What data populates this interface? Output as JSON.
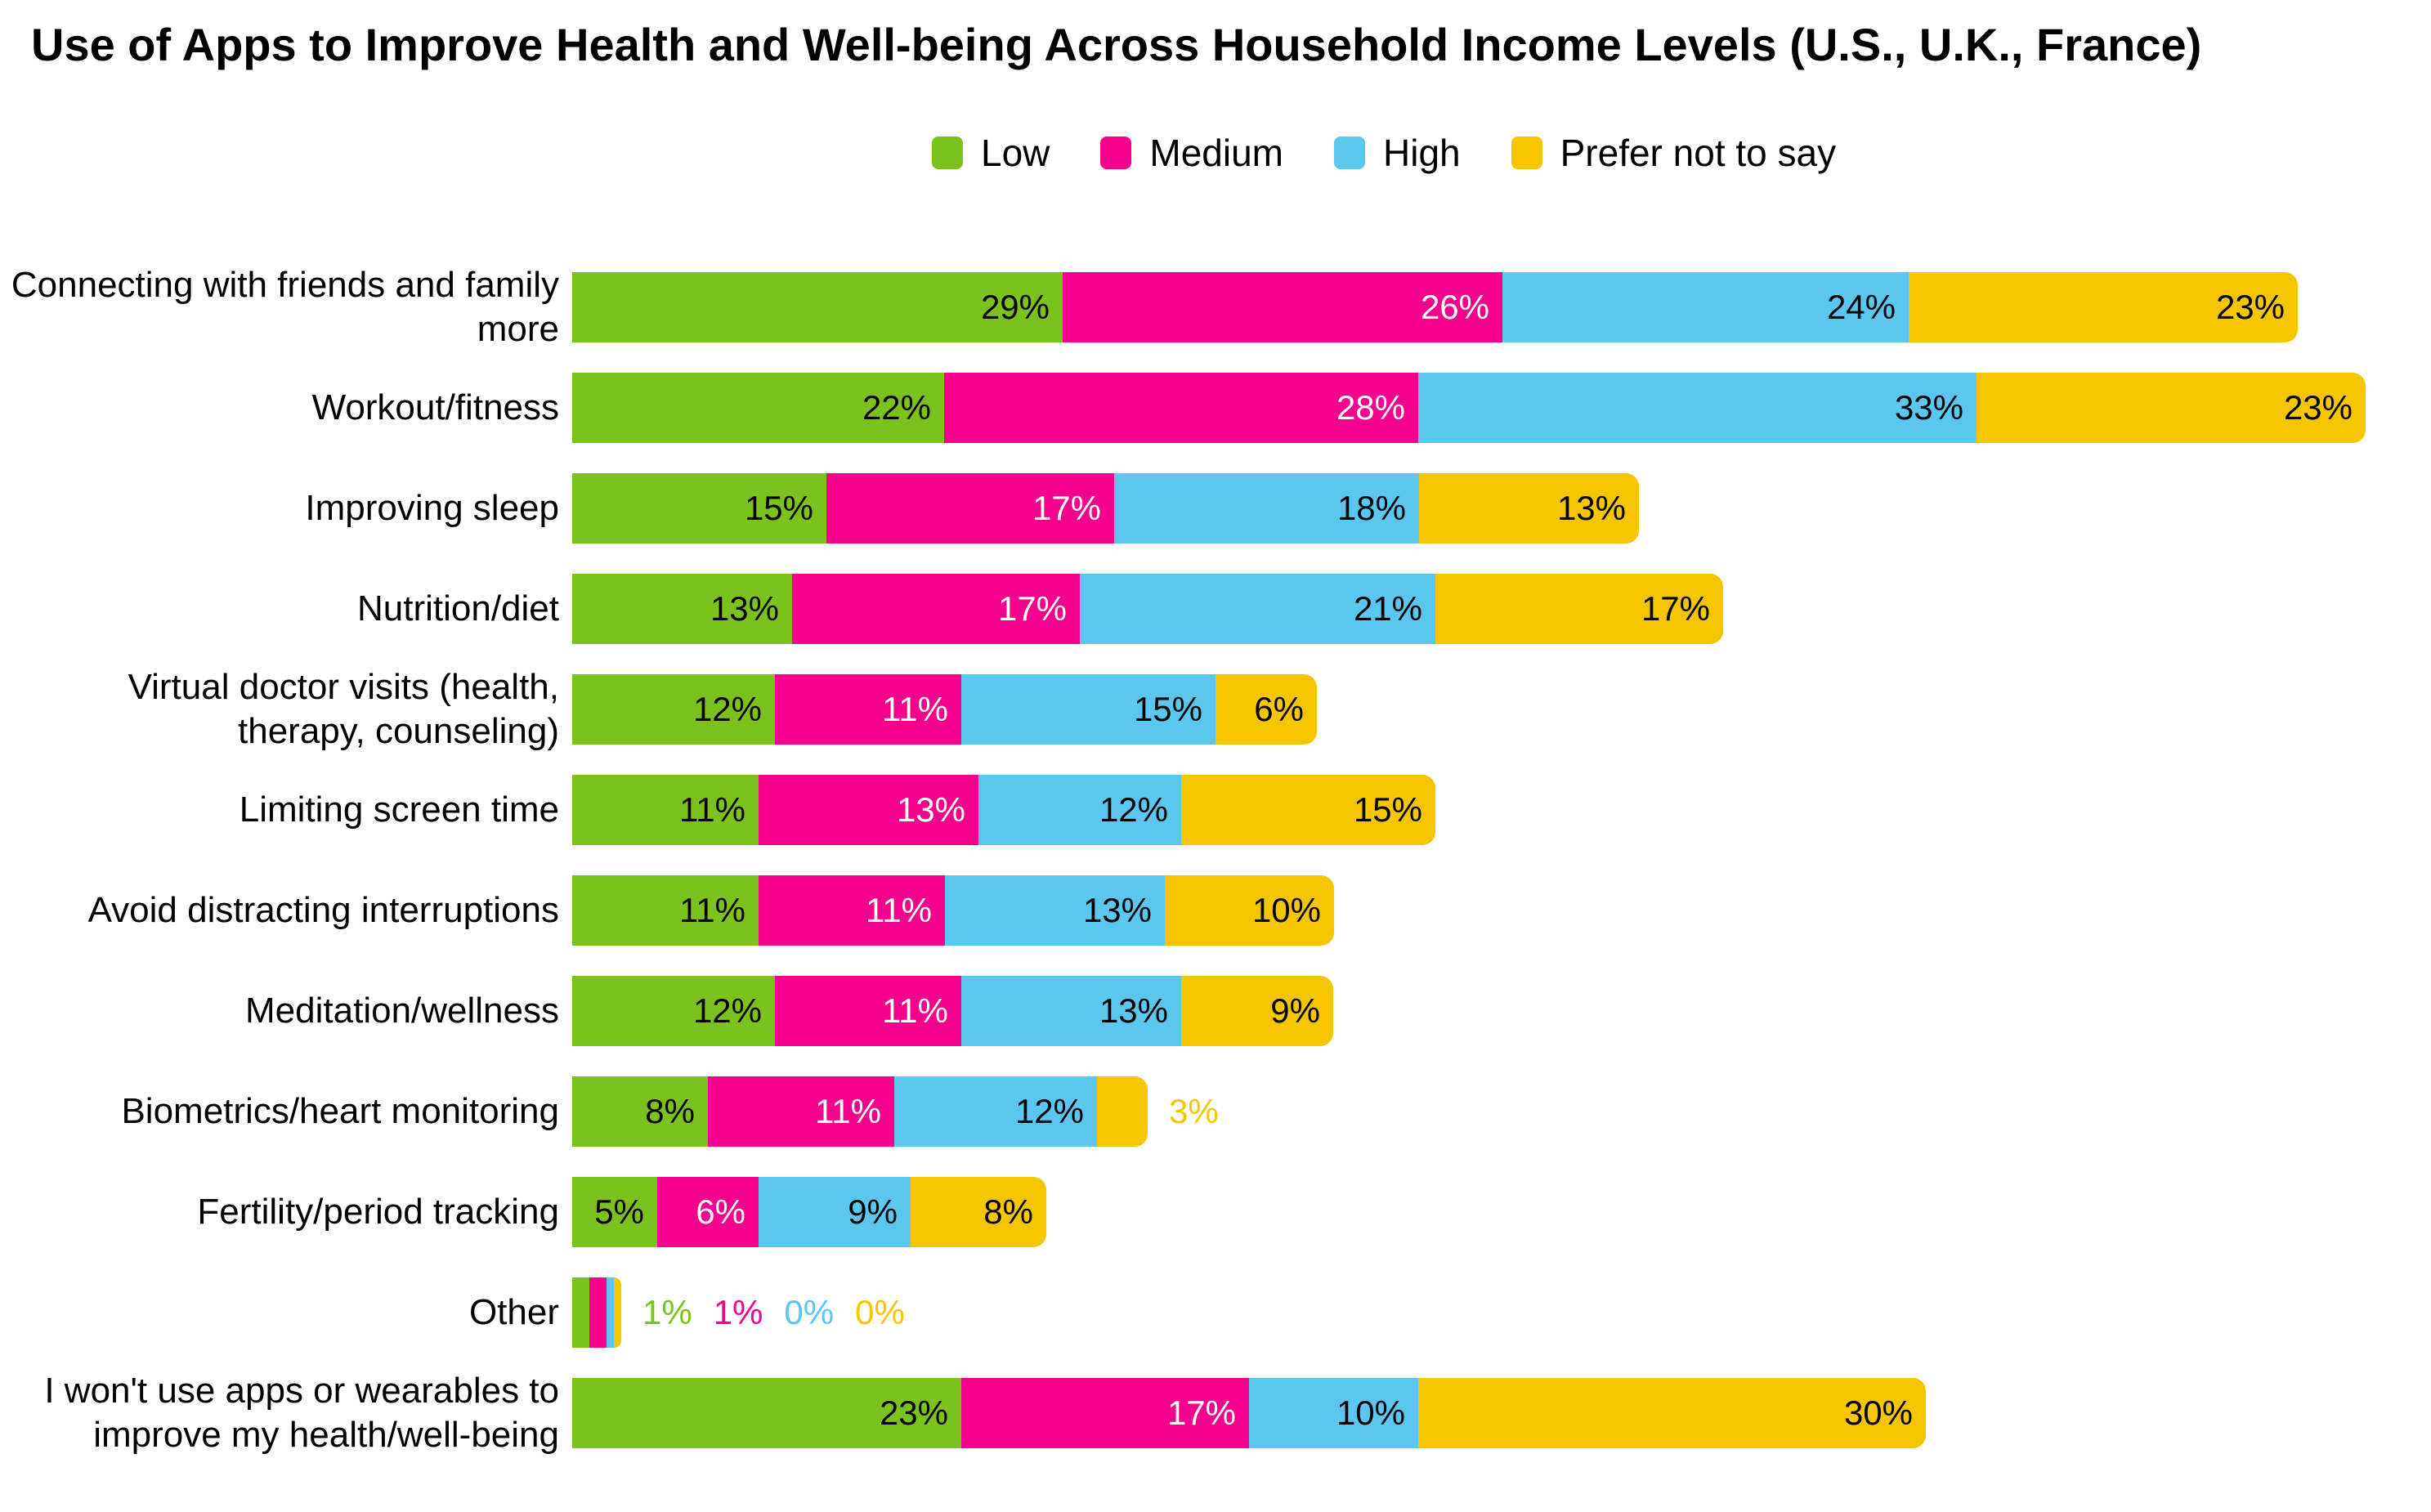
{
  "title": "Use of Apps to Improve Health and Well-being Across Household Income Levels (U.S., U.K., France)",
  "legend": {
    "items": [
      {
        "label": "Low",
        "color": "#7CC21E"
      },
      {
        "label": "Medium",
        "color": "#F4008C"
      },
      {
        "label": "High",
        "color": "#5BC6EE"
      },
      {
        "label": "Prefer not to say",
        "color": "#F5C500"
      }
    ]
  },
  "chart_data": {
    "type": "bar",
    "orientation": "horizontal",
    "stacked": true,
    "value_unit": "%",
    "value_suffix": "%",
    "legend_position": "top",
    "grid": false,
    "axis_hidden": true,
    "categories": [
      "Connecting with friends and family more",
      "Workout/fitness",
      "Improving sleep",
      "Nutrition/diet",
      "Virtual doctor visits (health, therapy, counseling)",
      "Limiting screen time",
      "Avoid distracting interruptions",
      "Meditation/wellness",
      "Biometrics/heart monitoring",
      "Fertility/period tracking",
      "Other",
      "I won't use apps or wearables to improve my health/well-being"
    ],
    "series": [
      {
        "name": "Low",
        "color": "#7CC21E",
        "label_text_color": "#000000",
        "values": [
          29,
          22,
          15,
          13,
          12,
          11,
          11,
          12,
          8,
          5,
          1,
          23
        ]
      },
      {
        "name": "Medium",
        "color": "#F4008C",
        "label_text_color": "#ffffff",
        "values": [
          26,
          28,
          17,
          17,
          11,
          13,
          11,
          11,
          11,
          6,
          1,
          17
        ]
      },
      {
        "name": "High",
        "color": "#5BC6EE",
        "label_text_color": "#000000",
        "values": [
          24,
          33,
          18,
          21,
          15,
          12,
          13,
          13,
          12,
          9,
          0,
          10
        ]
      },
      {
        "name": "Prefer not to say",
        "color": "#F5C500",
        "label_text_color": "#000000",
        "values": [
          23,
          23,
          13,
          17,
          6,
          15,
          10,
          9,
          3,
          8,
          0,
          30
        ]
      }
    ],
    "outside_label_rows": {
      "8": [
        3
      ],
      "10": [
        0,
        1,
        2,
        3
      ]
    },
    "xlim": [
      0,
      106
    ],
    "notes": "Values shown as data labels inside segments; tiny segments labeled outside the bar in the segment color"
  }
}
